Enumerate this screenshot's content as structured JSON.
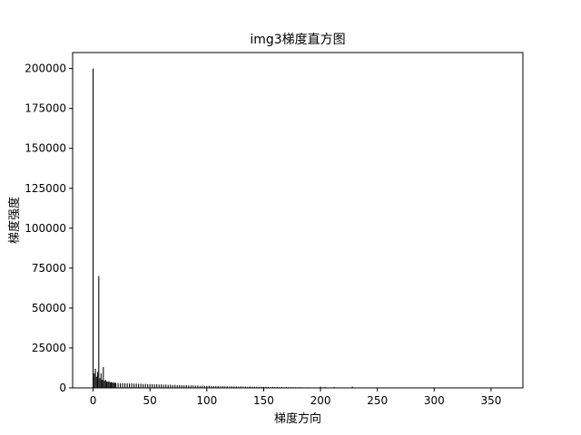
{
  "chart_data": {
    "type": "bar",
    "title": "img3梯度直方图",
    "xlabel": "梯度方向",
    "ylabel": "梯度强度",
    "xlim": [
      -18,
      378
    ],
    "ylim": [
      0,
      210000
    ],
    "xticks": [
      0,
      50,
      100,
      150,
      200,
      250,
      300,
      350
    ],
    "xtick_labels": [
      "0",
      "50",
      "100",
      "150",
      "200",
      "250",
      "300",
      "350"
    ],
    "yticks": [
      0,
      25000,
      50000,
      75000,
      100000,
      125000,
      150000,
      175000,
      200000
    ],
    "ytick_labels": [
      "0",
      "25000",
      "50000",
      "75000",
      "100000",
      "125000",
      "150000",
      "175000",
      "200000"
    ],
    "grid": false,
    "bar_color": "#000000",
    "x": [
      0,
      1,
      2,
      3,
      4,
      5,
      6,
      7,
      8,
      9,
      10,
      11,
      12,
      13,
      14,
      15,
      16,
      17,
      18,
      19,
      20,
      22,
      24,
      26,
      28,
      30,
      32,
      34,
      36,
      38,
      40,
      42,
      44,
      46,
      48,
      50,
      52,
      54,
      56,
      58,
      60,
      62,
      64,
      66,
      68,
      70,
      72,
      74,
      76,
      78,
      80,
      82,
      84,
      86,
      88,
      90,
      92,
      94,
      96,
      98,
      100,
      102,
      104,
      106,
      108,
      110,
      112,
      114,
      116,
      118,
      120,
      122,
      124,
      126,
      128,
      130,
      132,
      134,
      136,
      138,
      140,
      142,
      144,
      146,
      148,
      150,
      152,
      154,
      156,
      158,
      160,
      162,
      164,
      166,
      168,
      170,
      172,
      174,
      176,
      178,
      180,
      182,
      184,
      186,
      188,
      190,
      192,
      194,
      196,
      198,
      200,
      202,
      204,
      206,
      208,
      210,
      212,
      214,
      216,
      218,
      220,
      222,
      224,
      226,
      228
    ],
    "values": [
      200000,
      9000,
      12000,
      7000,
      10000,
      70000,
      6000,
      9000,
      5000,
      13000,
      4500,
      5000,
      4000,
      3800,
      4200,
      3500,
      3600,
      3400,
      3200,
      3300,
      3100,
      3000,
      2900,
      3000,
      2800,
      2900,
      2700,
      2800,
      2600,
      2700,
      2500,
      2600,
      2400,
      2500,
      2300,
      2400,
      2300,
      2200,
      2300,
      2100,
      2200,
      2000,
      2100,
      1900,
      2000,
      1800,
      1900,
      1700,
      1800,
      1700,
      1600,
      1700,
      1500,
      1600,
      1500,
      1400,
      1500,
      1300,
      1400,
      1300,
      1200,
      1300,
      1200,
      1100,
      1200,
      1100,
      1000,
      1100,
      1000,
      1000,
      900,
      1000,
      900,
      900,
      800,
      900,
      800,
      800,
      700,
      800,
      700,
      700,
      700,
      600,
      700,
      600,
      600,
      600,
      500,
      600,
      500,
      500,
      500,
      500,
      400,
      500,
      400,
      400,
      400,
      400,
      350,
      400,
      350,
      300,
      350,
      300,
      300,
      300,
      250,
      300,
      800,
      300,
      600,
      250,
      300,
      250,
      500,
      200,
      200,
      200,
      200,
      200,
      150,
      150,
      800
    ]
  }
}
